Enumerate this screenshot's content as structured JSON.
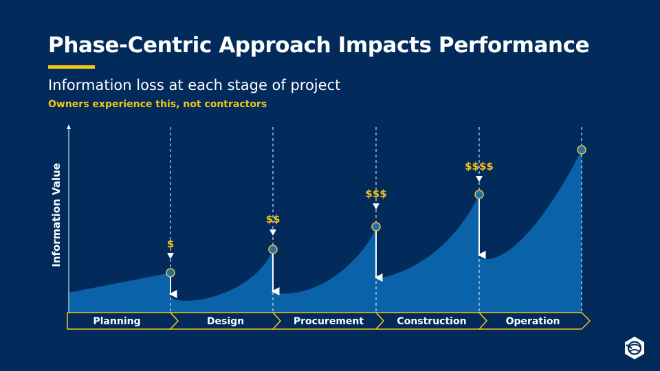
{
  "title": "Phase-Centric Approach Impacts Performance",
  "subtitle": "Information loss at each stage of project",
  "subnote": "Owners experience this, not contractors",
  "y_axis_label": "Information Value",
  "phases": [
    "Planning",
    "Design",
    "Procurement",
    "Construction",
    "Operation"
  ],
  "cost_markers": [
    "$",
    "$$",
    "$$$",
    "$$$$"
  ],
  "colors": {
    "background": "#022b5c",
    "area": "#0a62a8",
    "accent": "#f5c518",
    "node": "#1f6fb2",
    "text": "#ffffff"
  },
  "logo_icon": "company-logo-icon"
}
